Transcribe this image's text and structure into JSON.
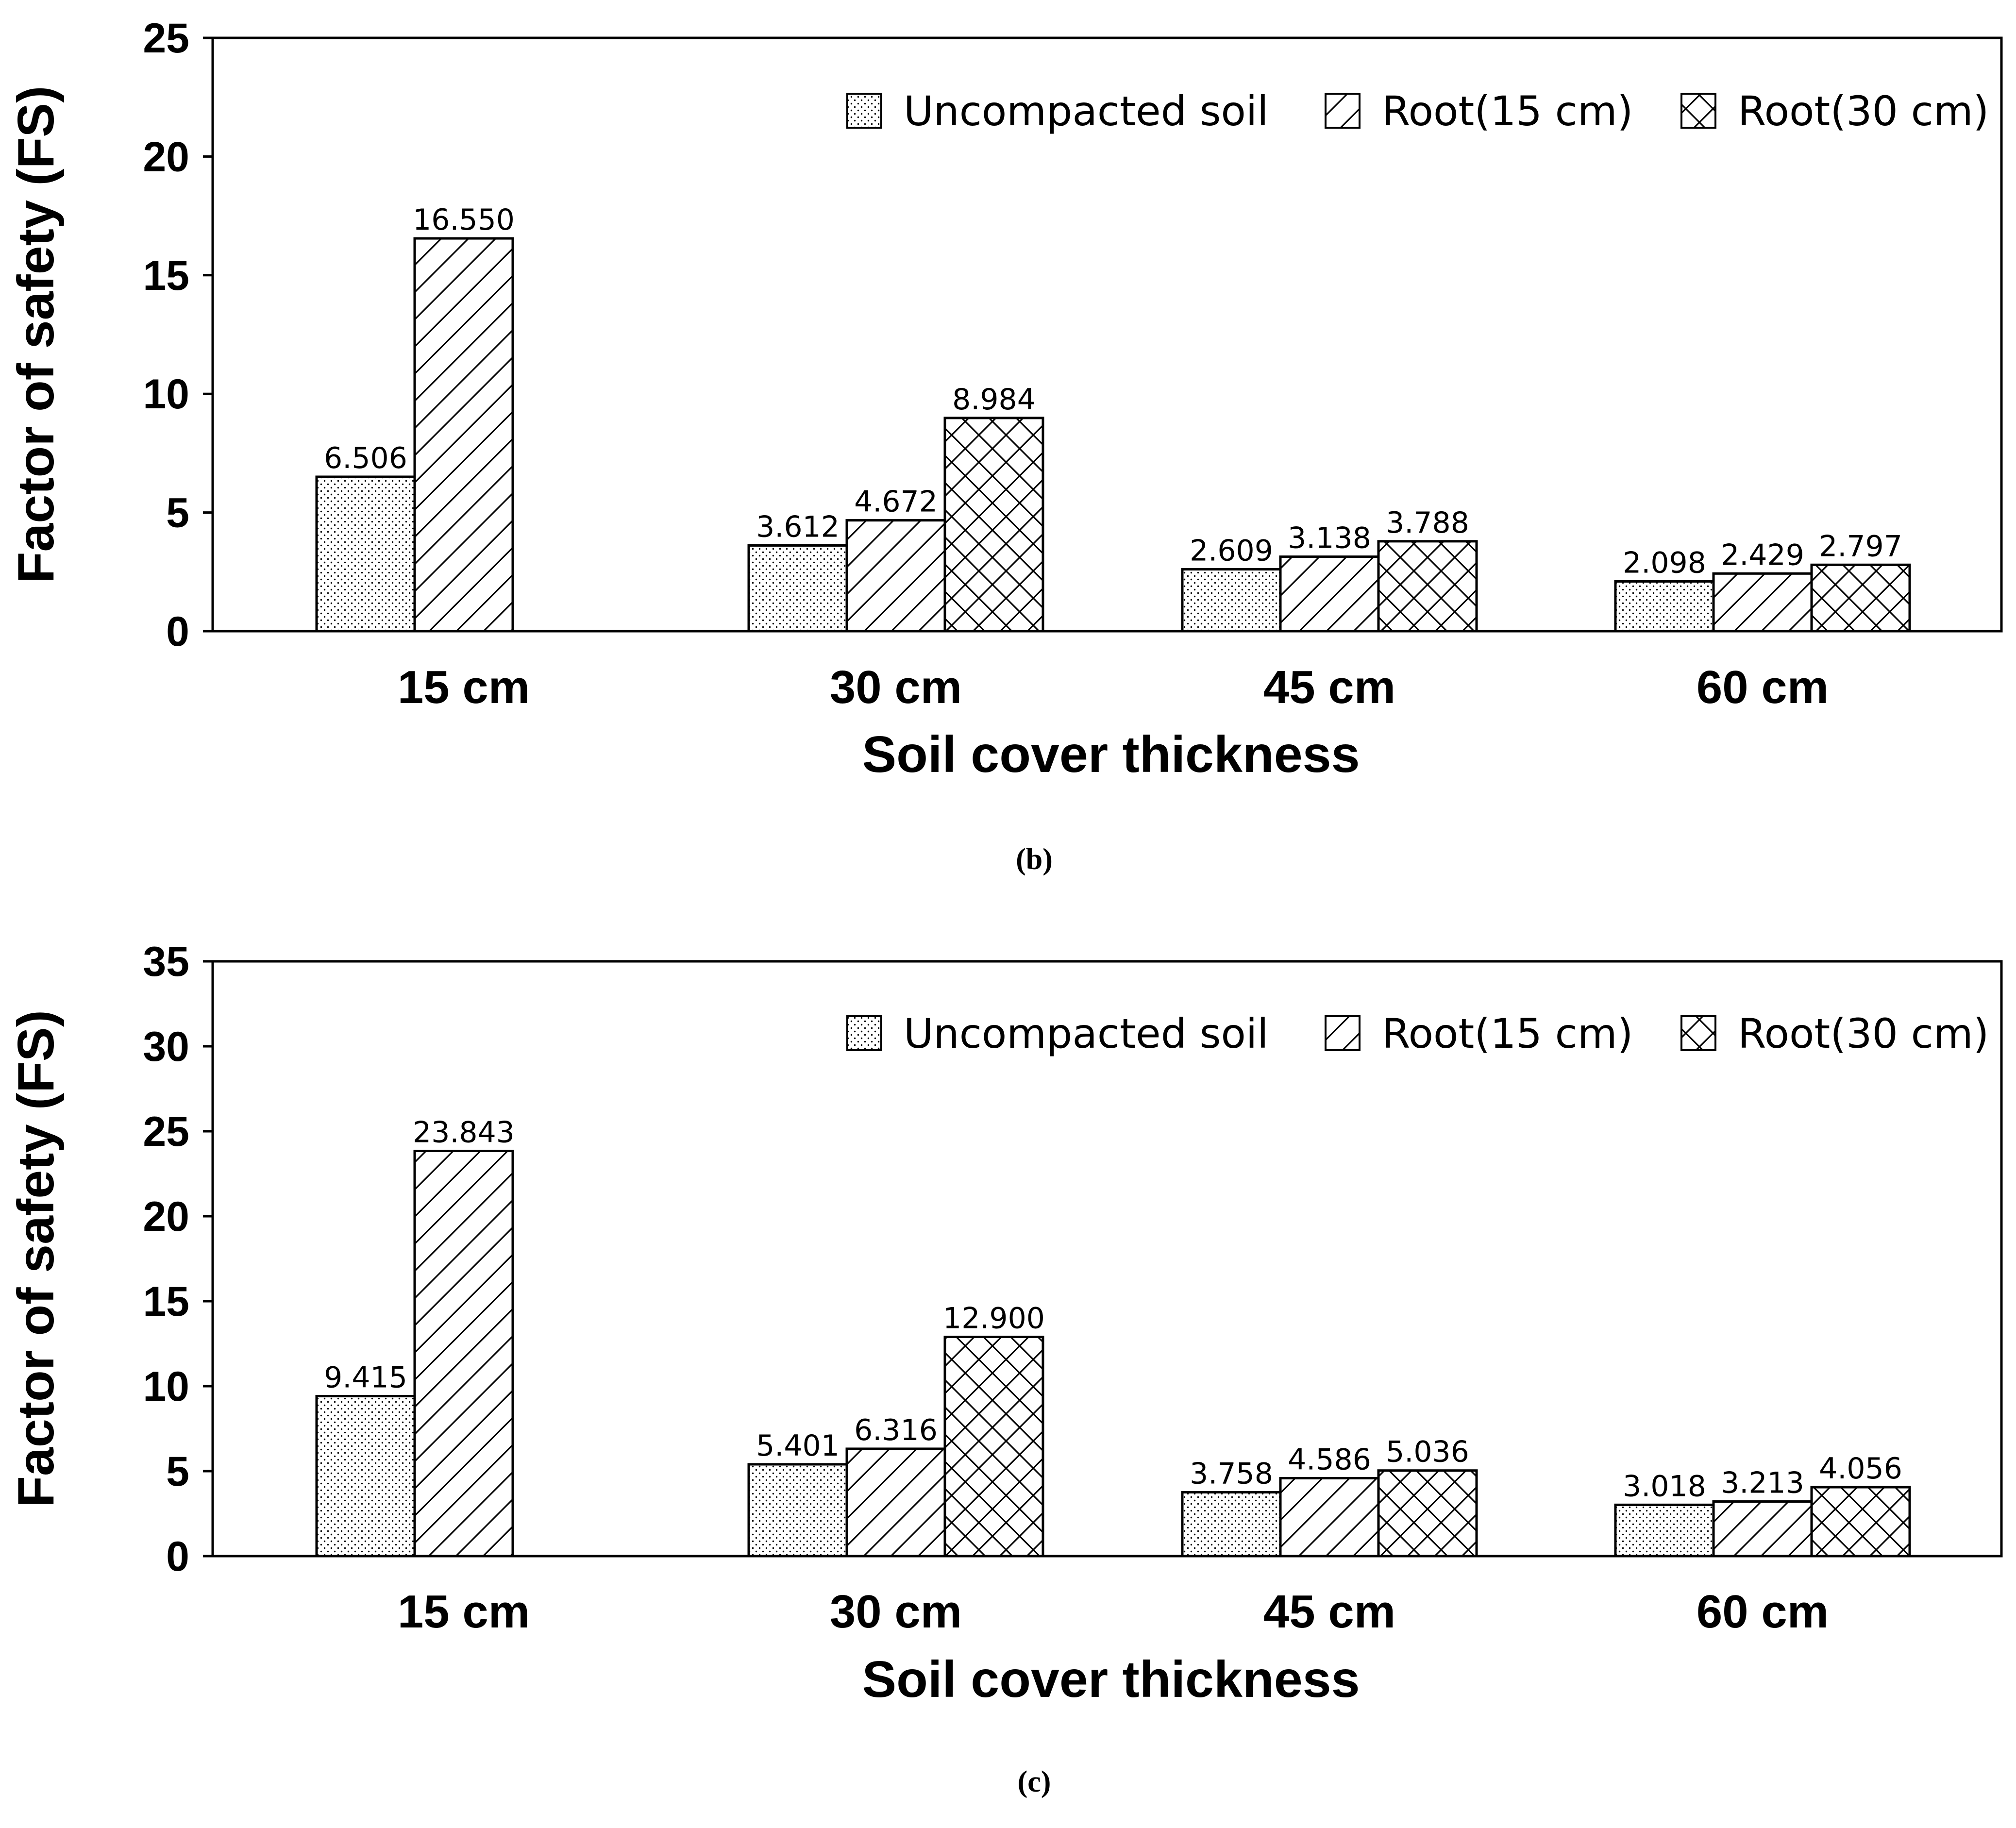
{
  "legend": [
    "Uncompacted soil",
    "Root(15 cm)",
    "Root(30 cm)"
  ],
  "patterns": [
    "dots",
    "hatch",
    "cross"
  ],
  "colors": {
    "bar_fill": "#ffffff",
    "stroke": "#000000"
  },
  "chart_data": [
    {
      "type": "bar",
      "caption": "(b)",
      "categories": [
        "15 cm",
        "30 cm",
        "45 cm",
        "60 cm"
      ],
      "xlabel": "Soil cover thickness",
      "ylabel": "Factor of safety (FS)",
      "ylim": [
        0,
        25
      ],
      "yticks": [
        0,
        5,
        10,
        15,
        20,
        25
      ],
      "series": [
        {
          "name": "Uncompacted soil",
          "values": [
            6.506,
            3.612,
            2.609,
            2.098
          ],
          "labels": [
            "6.506",
            "3.612",
            "2.609",
            "2.098"
          ]
        },
        {
          "name": "Root(15 cm)",
          "values": [
            16.55,
            4.672,
            3.138,
            2.429
          ],
          "labels": [
            "16.550",
            "4.672",
            "3.138",
            "2.429"
          ]
        },
        {
          "name": "Root(30 cm)",
          "values": [
            null,
            8.984,
            3.788,
            2.797
          ],
          "labels": [
            null,
            "8.984",
            "3.788",
            "2.797"
          ]
        }
      ]
    },
    {
      "type": "bar",
      "caption": "(c)",
      "categories": [
        "15 cm",
        "30 cm",
        "45 cm",
        "60 cm"
      ],
      "xlabel": "Soil cover thickness",
      "ylabel": "Factor of safety (FS)",
      "ylim": [
        0,
        35
      ],
      "yticks": [
        0,
        5,
        10,
        15,
        20,
        25,
        30,
        35
      ],
      "series": [
        {
          "name": "Uncompacted soil",
          "values": [
            9.415,
            5.401,
            3.758,
            3.018
          ],
          "labels": [
            "9.415",
            "5.401",
            "3.758",
            "3.018"
          ]
        },
        {
          "name": "Root(15 cm)",
          "values": [
            23.843,
            6.316,
            4.586,
            3.213
          ],
          "labels": [
            "23.843",
            "6.316",
            "4.586",
            "3.213"
          ]
        },
        {
          "name": "Root(30 cm)",
          "values": [
            null,
            12.9,
            5.036,
            4.056
          ],
          "labels": [
            null,
            "12.900",
            "5.036",
            "4.056"
          ]
        }
      ]
    }
  ]
}
